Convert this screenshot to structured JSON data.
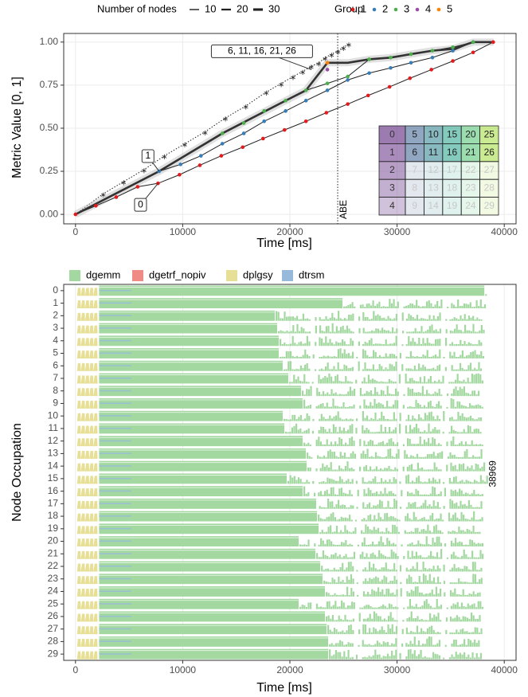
{
  "chart_data": [
    {
      "type": "line",
      "xlabel": "Time [ms]",
      "ylabel": "Metric Value [0, 1]",
      "xlim": [
        -1100,
        41100
      ],
      "ylim": [
        -0.055,
        1.05
      ],
      "xticks": [
        0,
        10000,
        20000,
        30000,
        40000
      ],
      "yticks": [
        {
          "value": 0,
          "label": "0.00"
        },
        {
          "value": 0.25,
          "label": "0.25"
        },
        {
          "value": 0.5,
          "label": "0.50"
        },
        {
          "value": 0.75,
          "label": "0.75"
        },
        {
          "value": 1,
          "label": "1.00"
        }
      ],
      "grid": true,
      "size_legend": {
        "title": "Number of nodes",
        "values": [
          10,
          20,
          30
        ]
      },
      "legend_title": "Group",
      "series": [
        {
          "name": "1",
          "color": "#e41a1c",
          "x": [
            0,
            1900,
            3800,
            5800,
            7700,
            9700,
            11600,
            13600,
            15600,
            17500,
            19500,
            21500,
            23400,
            25400,
            27300,
            29300,
            31200,
            33200,
            35200,
            37100,
            38969
          ],
          "values": [
            0,
            0.05,
            0.1,
            0.16,
            0.18,
            0.23,
            0.285,
            0.34,
            0.39,
            0.44,
            0.49,
            0.54,
            0.59,
            0.64,
            0.69,
            0.74,
            0.79,
            0.84,
            0.89,
            0.94,
            1.0
          ]
        },
        {
          "name": "2",
          "color": "#377eb8",
          "x": [
            7800,
            9800,
            11700,
            13700,
            15700,
            17600,
            19600,
            21500,
            23500,
            25400,
            27400,
            29400,
            31300,
            33300,
            35200,
            37100
          ],
          "values": [
            0.25,
            0.29,
            0.34,
            0.41,
            0.47,
            0.54,
            0.6,
            0.66,
            0.72,
            0.78,
            0.82,
            0.85,
            0.88,
            0.91,
            0.95,
            1.0
          ]
        },
        {
          "name": "3",
          "color": "#4daf4a",
          "x": [
            13700,
            15700,
            17600,
            19600,
            21500,
            23500,
            25400,
            27400,
            29400,
            31300,
            33300,
            35200,
            37100
          ],
          "values": [
            0.47,
            0.53,
            0.6,
            0.66,
            0.72,
            0.76,
            0.8,
            0.9,
            0.91,
            0.93,
            0.95,
            0.97,
            1.0
          ]
        },
        {
          "name": "4",
          "color": "#984ea3",
          "x": [
            23500
          ],
          "values": [
            0.84
          ]
        },
        {
          "name": "5",
          "color": "#ff7f00",
          "x": [
            23500
          ],
          "values": [
            0.88
          ]
        }
      ],
      "envelope": {
        "color": "#333333",
        "x": [
          0,
          7800,
          13700,
          19600,
          21500,
          23500,
          25400,
          27400,
          29400,
          31300,
          33300,
          35200,
          37100,
          39000
        ],
        "values": [
          0,
          0.25,
          0.47,
          0.66,
          0.72,
          0.88,
          0.88,
          0.9,
          0.91,
          0.93,
          0.95,
          0.96,
          1.0,
          1.0
        ]
      },
      "abe": {
        "label": "ABE",
        "x": 24460,
        "stars_x": [
          0,
          2600,
          4500,
          6400,
          8300,
          10200,
          12100,
          14000,
          15900,
          17800,
          19200,
          20300,
          21200,
          22000,
          22700,
          23300,
          23900,
          24500,
          25000,
          25500
        ],
        "stars_values": [
          0,
          0.12,
          0.19,
          0.26,
          0.34,
          0.41,
          0.48,
          0.56,
          0.63,
          0.71,
          0.76,
          0.8,
          0.83,
          0.86,
          0.88,
          0.91,
          0.93,
          0.95,
          0.97,
          0.99
        ]
      },
      "annotations": [
        {
          "text": "6, 11, 16, 21, 26",
          "x": 22000,
          "y": 0.84
        },
        {
          "text": "1",
          "x": 7800,
          "y": 0.25
        },
        {
          "text": "0",
          "x": 7700,
          "y": 0.18
        }
      ],
      "inset": {
        "groups": [
          "0",
          "1",
          "2",
          "3",
          "4"
        ],
        "rows": [
          [
            5,
            10,
            15,
            20,
            25
          ],
          [
            6,
            11,
            16,
            21,
            26
          ],
          [
            7,
            12,
            17,
            22,
            27
          ],
          [
            8,
            13,
            18,
            23,
            28
          ],
          [
            9,
            14,
            19,
            24,
            29
          ]
        ]
      }
    },
    {
      "type": "gantt",
      "xlabel": "Time [ms]",
      "ylabel": "Node Occupation",
      "xlim": [
        -1100,
        41100
      ],
      "xticks": [
        0,
        10000,
        20000,
        30000,
        40000
      ],
      "categories": [
        "0",
        "1",
        "2",
        "3",
        "4",
        "5",
        "6",
        "7",
        "8",
        "9",
        "10",
        "11",
        "12",
        "13",
        "14",
        "15",
        "16",
        "17",
        "18",
        "19",
        "20",
        "21",
        "22",
        "23",
        "24",
        "25",
        "26",
        "27",
        "28",
        "29"
      ],
      "series": [
        {
          "name": "dgemm",
          "color": "#a3d9a1",
          "start": 2200,
          "dense_end": [
            38140,
            24910,
            18590,
            18810,
            18960,
            18960,
            19330,
            19850,
            21040,
            21190,
            19330,
            19480,
            21190,
            21490,
            21560,
            19700,
            21190,
            22450,
            22530,
            22680,
            20820,
            22380,
            22830,
            23050,
            23270,
            20820,
            23270,
            23420,
            23570,
            23570
          ],
          "end": [
            38300,
            38400,
            38000,
            38100,
            38000,
            38100,
            37900,
            38000,
            37800,
            38000,
            38000,
            37900,
            38100,
            38000,
            38200,
            38969,
            38000,
            37900,
            38000,
            37800,
            38000,
            38100,
            37900,
            38000,
            37800,
            38000,
            37900,
            38000,
            37800,
            37900
          ]
        },
        {
          "name": "dgetrf_nopiv",
          "color": "#f08a84"
        },
        {
          "name": "dplgsy",
          "color": "#e6df95",
          "start": 150,
          "end": 2100
        },
        {
          "name": "dtrsm",
          "color": "#96b9dc",
          "start": 2200,
          "end": 5200
        }
      ],
      "makespan": 38969,
      "makespan_row": 15
    }
  ]
}
